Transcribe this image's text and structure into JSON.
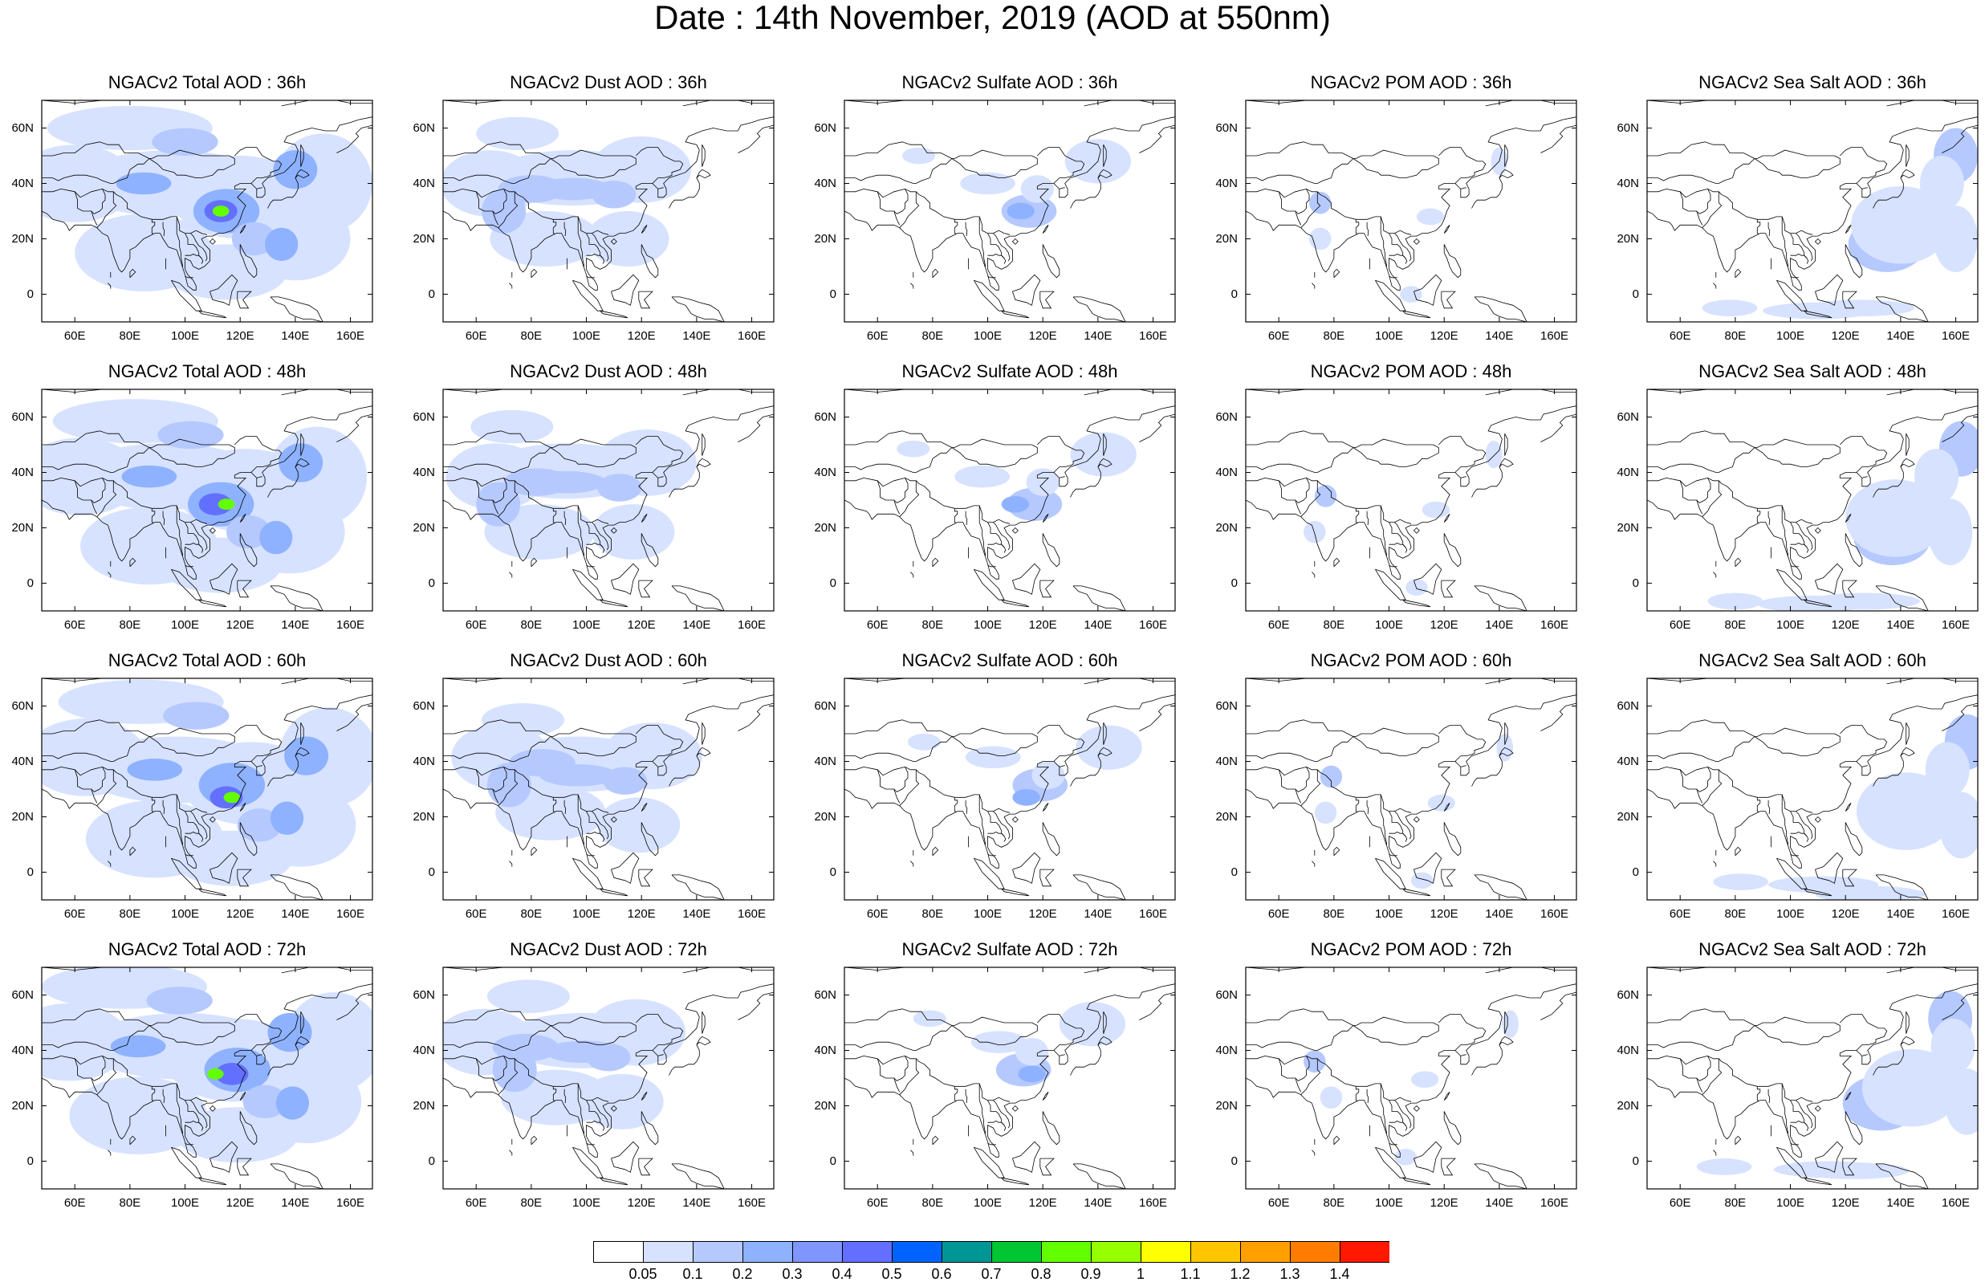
{
  "title": "Date : 14th November, 2019 (AOD at 550nm)",
  "species": [
    {
      "key": "total",
      "titles": [
        "NGACv2 Total AOD : 36h",
        "NGACv2 Total AOD : 48h",
        "NGACv2 Total AOD : 60h",
        "NGACv2 Total AOD : 72h"
      ]
    },
    {
      "key": "dust",
      "titles": [
        "NGACv2 Dust AOD : 36h",
        "NGACv2 Dust AOD : 48h",
        "NGACv2 Dust AOD : 60h",
        "NGACv2 Dust AOD : 72h"
      ]
    },
    {
      "key": "sulfate",
      "titles": [
        "NGACv2 Sulfate AOD : 36h",
        "NGACv2 Sulfate AOD : 48h",
        "NGACv2 Sulfate AOD : 60h",
        "NGACv2 Sulfate AOD : 72h"
      ]
    },
    {
      "key": "pom",
      "titles": [
        "NGACv2 POM AOD : 36h",
        "NGACv2 POM AOD : 48h",
        "NGACv2 POM AOD : 60h",
        "NGACv2 POM AOD : 72h"
      ]
    },
    {
      "key": "seasalt",
      "titles": [
        "NGACv2 Sea Salt AOD : 36h",
        "NGACv2 Sea Salt AOD : 48h",
        "NGACv2 Sea Salt AOD : 60h",
        "NGACv2 Sea Salt  AOD : 72h"
      ]
    }
  ],
  "lon_labels": [
    "60E",
    "80E",
    "100E",
    "120E",
    "140E",
    "160E"
  ],
  "lon_values": [
    60,
    80,
    100,
    120,
    140,
    160
  ],
  "lat_labels": [
    "60N",
    "40N",
    "20N",
    "0"
  ],
  "lat_values": [
    60,
    40,
    20,
    0
  ],
  "map_extent": {
    "lon_min": 48,
    "lon_max": 168,
    "lat_min": -10,
    "lat_max": 70
  },
  "colorbar": {
    "labels": [
      "0.05",
      "0.1",
      "0.2",
      "0.3",
      "0.4",
      "0.5",
      "0.6",
      "0.7",
      "0.8",
      "0.9",
      "1",
      "1.1",
      "1.2",
      "1.3",
      "1.4"
    ],
    "colors": [
      "#ffffff",
      "#d6e2ff",
      "#b5c9ff",
      "#8eb2ff",
      "#7f96ff",
      "#6370ff",
      "#0063ff",
      "#009696",
      "#00c633",
      "#63ff00",
      "#96ff00",
      "#ffff00",
      "#ffc600",
      "#ffa000",
      "#ff7c00",
      "#ff1900"
    ]
  },
  "colors": {
    "land_outline": "#000000",
    "frame": "#000000"
  }
}
